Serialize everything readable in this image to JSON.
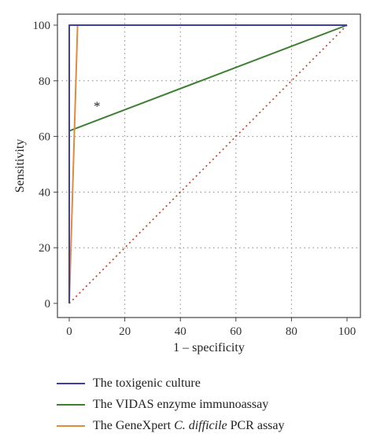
{
  "chart_data": {
    "type": "line",
    "xlabel": "1 – specificity",
    "ylabel": "Sensitivity",
    "xlim": [
      0,
      100
    ],
    "ylim": [
      0,
      100
    ],
    "xticks": [
      0,
      20,
      40,
      60,
      80,
      100
    ],
    "yticks": [
      0,
      20,
      40,
      60,
      80,
      100
    ],
    "grid": "dotted",
    "annotation": {
      "text": "*",
      "x": 10,
      "y": 71
    },
    "series": [
      {
        "name": "The toxigenic culture",
        "color": "#3f3fa8",
        "x": [
          0,
          0,
          100
        ],
        "y": [
          0,
          100,
          100
        ]
      },
      {
        "name": "The VIDAS enzyme immunoassay",
        "color": "#3d7f32",
        "x": [
          0,
          0,
          100
        ],
        "y": [
          0,
          62,
          100
        ]
      },
      {
        "name": "The GeneXpert C. difficile PCR assay",
        "color": "#e08a3c",
        "x": [
          0,
          3,
          100
        ],
        "y": [
          0,
          100,
          100
        ]
      }
    ],
    "reference_line": {
      "color": "#c0392b",
      "style": "dotted",
      "x": [
        0,
        100
      ],
      "y": [
        0,
        100
      ]
    }
  },
  "legend": {
    "items": [
      {
        "label": "The toxigenic culture",
        "color": "#3f3fa8"
      },
      {
        "label": "The VIDAS enzyme immunoassay",
        "color": "#3d7f32"
      },
      {
        "label_pre": "The GeneXpert ",
        "label_italic": "C. difficile",
        "label_post": " PCR assay",
        "color": "#e08a3c"
      }
    ]
  }
}
